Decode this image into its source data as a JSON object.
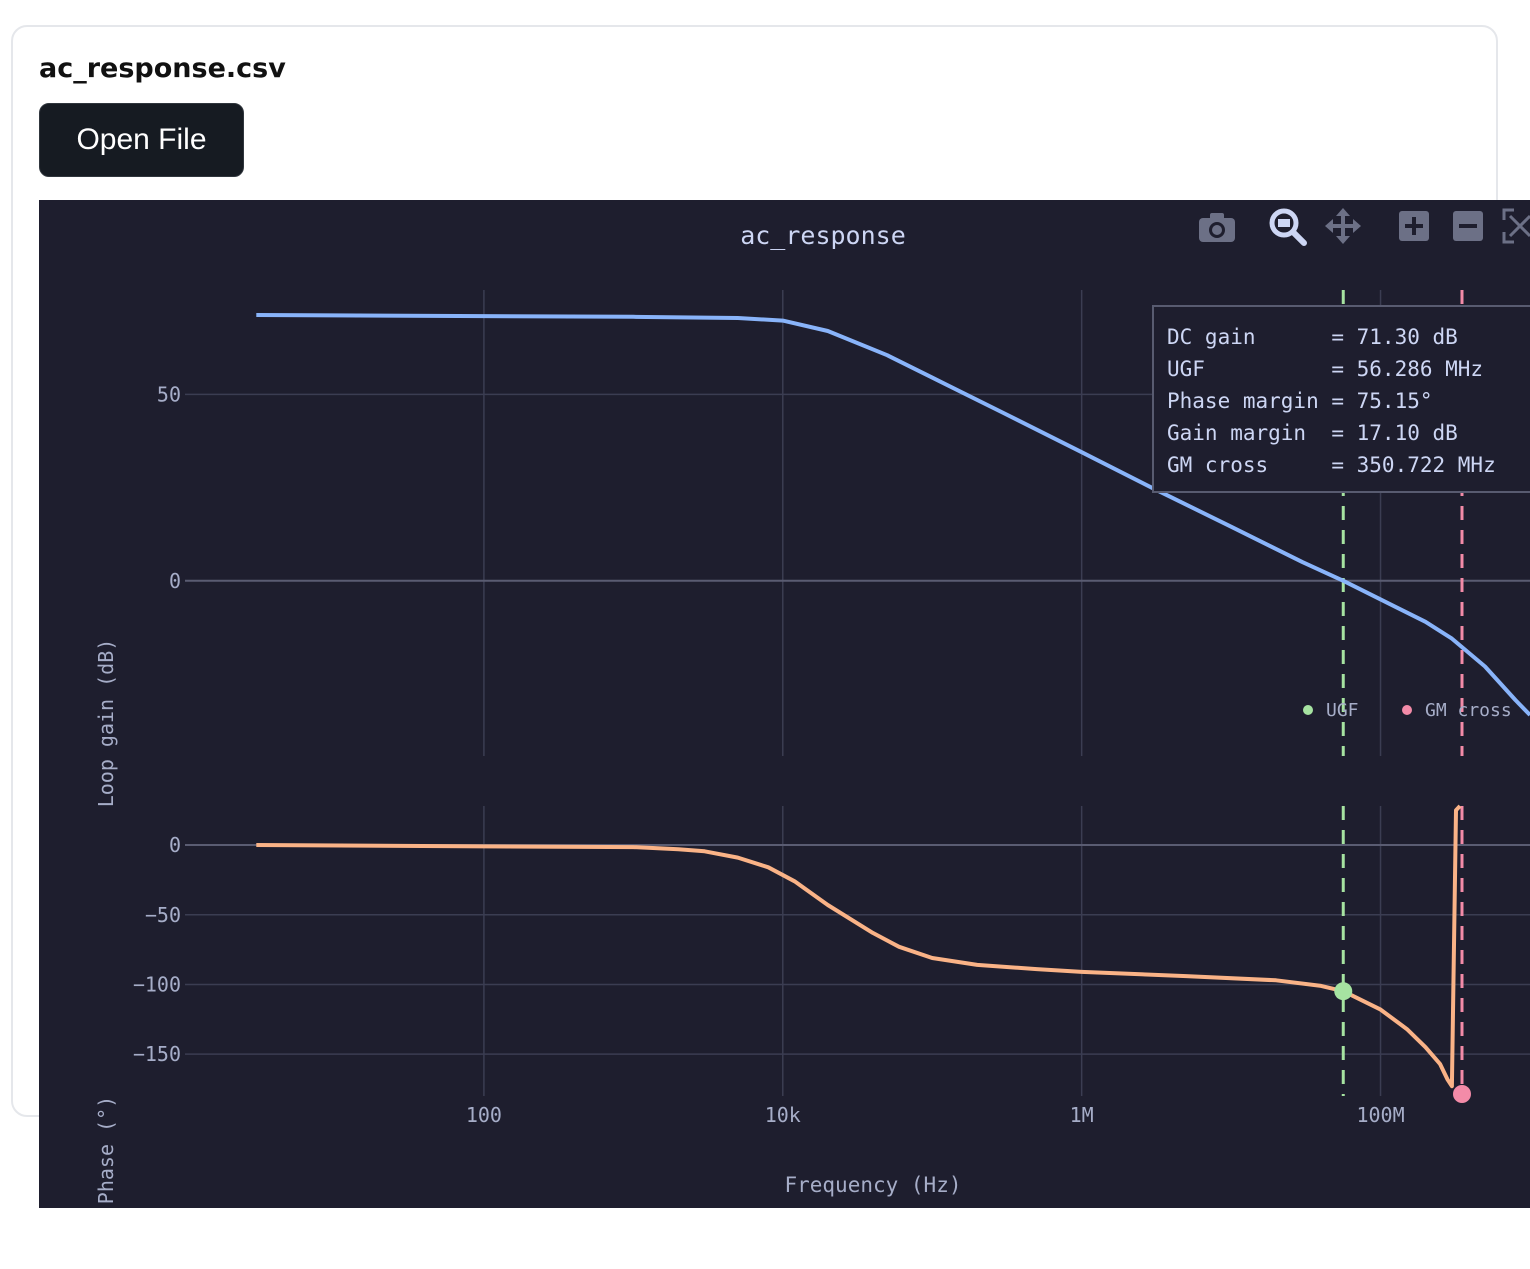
{
  "panel": {
    "filename": "ac_response.csv",
    "open_button_label": "Open File"
  },
  "toolbar": {
    "icons": [
      "camera-icon",
      "zoom-icon",
      "pan-icon",
      "zoom-in-icon",
      "zoom-out-icon",
      "autoscale-icon"
    ]
  },
  "colors": {
    "background": "#1e1e2e",
    "grid": "#3b3d52",
    "axis_text": "#a6adc8",
    "title_text": "#cdd6f4",
    "gain_trace": "#89b4fa",
    "phase_trace": "#fab387",
    "ugf_marker": "#a6e3a1",
    "gm_marker": "#f38ba8",
    "annotation_bg": "#1e1e2e",
    "annotation_border": "#585b70",
    "toolbar_icon": "#6c7086",
    "button_bg": "#161b22"
  },
  "chart_data": {
    "type": "line",
    "title": "ac_response",
    "xlabel": "Frequency (Hz)",
    "x_scale": "log",
    "xlim": [
      1,
      1000000000
    ],
    "x_ticks": [
      {
        "value": 100,
        "label": "100"
      },
      {
        "value": 10000,
        "label": "10k"
      },
      {
        "value": 1000000,
        "label": "1M"
      },
      {
        "value": 100000000,
        "label": "100M"
      }
    ],
    "gain_panel": {
      "ylabel": "Loop gain (dB)",
      "ylim": [
        -47,
        78
      ],
      "y_ticks": [
        {
          "value": 50,
          "label": "50"
        },
        {
          "value": 0,
          "label": "0"
        }
      ],
      "series": {
        "x": [
          3,
          10,
          100,
          1000,
          5000,
          10000,
          20000,
          50000,
          100000,
          300000,
          1000000,
          3000000,
          10000000,
          30000000,
          56286000,
          100000000,
          200000000,
          300000000,
          500000000,
          800000000,
          1000000000
        ],
        "y": [
          71.3,
          71.2,
          71.0,
          70.8,
          70.5,
          69.8,
          67.0,
          60.5,
          54.5,
          45.0,
          34.5,
          24.8,
          14.5,
          5.0,
          0.0,
          -5.0,
          -11.0,
          -15.5,
          -23.0,
          -32.0,
          -36.0
        ]
      }
    },
    "phase_panel": {
      "ylabel": "Phase (°)",
      "ylim": [
        -180,
        28
      ],
      "y_ticks": [
        {
          "value": 0,
          "label": "0"
        },
        {
          "value": -50,
          "label": "−50"
        },
        {
          "value": -100,
          "label": "−100"
        },
        {
          "value": -150,
          "label": "−150"
        }
      ],
      "series": {
        "x": [
          3,
          100,
          1000,
          2000,
          3000,
          5000,
          8000,
          12000,
          20000,
          40000,
          60000,
          100000,
          200000,
          500000,
          1000000,
          5000000,
          20000000,
          40000000,
          56286000,
          100000000,
          150000000,
          200000000,
          250000000,
          280000000,
          300000000,
          320000000,
          340000000
        ],
        "y": [
          0,
          -1,
          -1.5,
          -3,
          -4.5,
          -9,
          -16,
          -26,
          -43,
          -63,
          -73,
          -81,
          -86,
          -89,
          -91,
          -94,
          -97,
          -101,
          -104.85,
          -118,
          -132,
          -145,
          -157,
          -168,
          -173,
          25,
          28
        ]
      }
    },
    "markers": [
      {
        "name": "UGF",
        "x": 56286000,
        "phase": -104.85
      },
      {
        "name": "GM cross",
        "x": 350722000,
        "phase": -180
      }
    ],
    "legend": {
      "placement": "bottom-right of gain panel",
      "entries": [
        "UGF",
        "GM cross"
      ]
    },
    "annotation": {
      "lines": [
        "DC gain      = 71.30 dB",
        "UGF          = 56.286 MHz",
        "Phase margin = 75.15°",
        "Gain margin  = 17.10 dB",
        "GM cross     = 350.722 MHz"
      ]
    },
    "grid": true
  }
}
